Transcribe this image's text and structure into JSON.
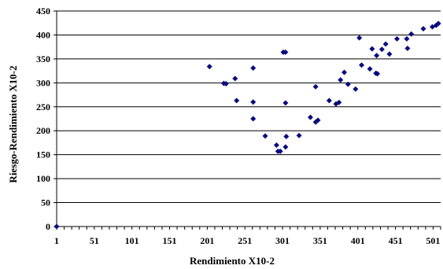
{
  "chart_data": {
    "type": "scatter",
    "xlabel": "Rendimiento X10-2",
    "ylabel": "Riesgo-Rendimiento X10-2",
    "xlim": [
      1,
      511
    ],
    "ylim": [
      0,
      450
    ],
    "x_ticks": [
      1,
      51,
      101,
      151,
      201,
      251,
      301,
      351,
      401,
      451,
      501
    ],
    "x_ticks_labels": [
      "1",
      "51",
      "101",
      "151",
      "201",
      "251",
      "301",
      "351",
      "401",
      "451",
      "501"
    ],
    "y_ticks": [
      0,
      50,
      100,
      150,
      200,
      250,
      300,
      350,
      400,
      450
    ],
    "y_ticks_labels": [
      "0",
      "50",
      "100",
      "150",
      "200",
      "250",
      "300",
      "350",
      "400",
      "450"
    ],
    "grid": "horizontal",
    "marker_color": "#0a0a80",
    "marker": "diamond",
    "series": [
      {
        "points": [
          [
            1,
            0
          ],
          [
            204,
            334
          ],
          [
            223,
            299
          ],
          [
            226,
            298
          ],
          [
            238,
            309
          ],
          [
            240,
            263
          ],
          [
            262,
            331
          ],
          [
            262,
            260
          ],
          [
            262,
            225
          ],
          [
            278,
            189
          ],
          [
            293,
            170
          ],
          [
            295,
            157
          ],
          [
            298,
            157
          ],
          [
            302,
            364
          ],
          [
            305,
            364
          ],
          [
            305,
            258
          ],
          [
            306,
            188
          ],
          [
            305,
            166
          ],
          [
            323,
            190
          ],
          [
            338,
            228
          ],
          [
            345,
            292
          ],
          [
            345,
            218
          ],
          [
            348,
            222
          ],
          [
            363,
            263
          ],
          [
            372,
            256
          ],
          [
            376,
            259
          ],
          [
            378,
            306
          ],
          [
            383,
            322
          ],
          [
            388,
            297
          ],
          [
            398,
            287
          ],
          [
            403,
            394
          ],
          [
            406,
            337
          ],
          [
            417,
            329
          ],
          [
            420,
            371
          ],
          [
            426,
            357
          ],
          [
            427,
            319
          ],
          [
            425,
            320
          ],
          [
            433,
            370
          ],
          [
            438,
            381
          ],
          [
            443,
            360
          ],
          [
            453,
            392
          ],
          [
            466,
            392
          ],
          [
            467,
            372
          ],
          [
            472,
            402
          ],
          [
            488,
            413
          ],
          [
            500,
            417
          ],
          [
            505,
            420
          ],
          [
            508,
            424
          ]
        ]
      }
    ]
  }
}
